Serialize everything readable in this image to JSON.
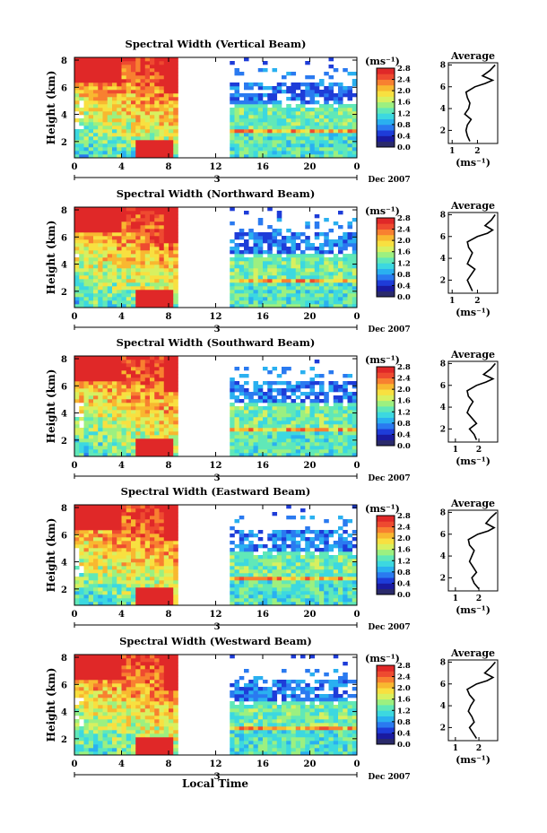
{
  "page": {
    "xlabel": "Local Time",
    "date_label": "Dec 2007"
  },
  "colorbar": {
    "unit": "(ms⁻¹)",
    "ticks": [
      "0.0",
      "0.4",
      "0.8",
      "1.2",
      "1.6",
      "2.0",
      "2.4",
      "2.8"
    ],
    "palette": [
      "#2a2a6a",
      "#1a1aa0",
      "#1e3cd8",
      "#2a7af0",
      "#2ab0f0",
      "#3cd8e0",
      "#60e8b8",
      "#9cf080",
      "#d8f060",
      "#f8e040",
      "#f8b830",
      "#f88030",
      "#ee4a30",
      "#e02828"
    ]
  },
  "chart_data": [
    {
      "type": "heatmap",
      "title": "Spectral Width (Vertical Beam)",
      "ylabel": "Height (km)",
      "x_ticks": [
        "0",
        "4",
        "8",
        "12",
        "16",
        "20",
        "0"
      ],
      "x_sub_label": "3",
      "xlim": [
        0,
        24
      ],
      "y_ticks": [
        "2",
        "4",
        "6",
        "8"
      ],
      "ylim": [
        0.8,
        8.2
      ],
      "colorbar_range": [
        0.0,
        2.8
      ],
      "data_gap_hours": [
        8.9,
        13.0
      ],
      "profile": {
        "title": "Average",
        "xlabel": "(ms⁻¹)",
        "x_ticks": [
          "1",
          "2"
        ],
        "xlim": [
          0.85,
          2.8
        ],
        "height_km": [
          1.0,
          1.5,
          2.0,
          2.5,
          3.0,
          3.5,
          4.0,
          4.5,
          5.0,
          5.5,
          6.0,
          6.3,
          6.6,
          7.0,
          7.5,
          8.0
        ],
        "width_ms": [
          1.7,
          1.6,
          1.55,
          1.6,
          1.75,
          1.5,
          1.65,
          1.7,
          1.6,
          1.55,
          1.9,
          2.3,
          2.6,
          2.2,
          2.5,
          2.7
        ]
      }
    },
    {
      "type": "heatmap",
      "title": "Spectral Width (Northward Beam)",
      "ylabel": "Height (km)",
      "x_ticks": [
        "0",
        "4",
        "8",
        "12",
        "16",
        "20",
        "0"
      ],
      "x_sub_label": "3",
      "xlim": [
        0,
        24
      ],
      "y_ticks": [
        "2",
        "4",
        "6",
        "8"
      ],
      "ylim": [
        0.8,
        8.2
      ],
      "colorbar_range": [
        0.0,
        2.8
      ],
      "data_gap_hours": [
        8.9,
        13.0
      ],
      "profile": {
        "title": "Average",
        "xlabel": "(ms⁻¹)",
        "x_ticks": [
          "1",
          "2"
        ],
        "xlim": [
          0.85,
          2.8
        ],
        "height_km": [
          1.0,
          1.5,
          2.0,
          2.5,
          3.0,
          3.5,
          4.0,
          4.5,
          5.0,
          5.5,
          6.0,
          6.3,
          6.6,
          7.0,
          7.5,
          8.0
        ],
        "width_ms": [
          1.8,
          1.7,
          1.6,
          1.75,
          1.9,
          1.6,
          1.7,
          1.8,
          1.65,
          1.6,
          2.0,
          2.4,
          2.6,
          2.3,
          2.55,
          2.7
        ]
      }
    },
    {
      "type": "heatmap",
      "title": "Spectral Width (Southward Beam)",
      "ylabel": "Height (km)",
      "x_ticks": [
        "0",
        "4",
        "8",
        "12",
        "16",
        "20",
        "0"
      ],
      "x_sub_label": "3",
      "xlim": [
        0,
        24
      ],
      "y_ticks": [
        "2",
        "4",
        "6",
        "8"
      ],
      "ylim": [
        0.8,
        8.2
      ],
      "colorbar_range": [
        0.0,
        2.8
      ],
      "data_gap_hours": [
        8.9,
        13.0
      ],
      "profile": {
        "title": "Average",
        "xlabel": "(ms⁻¹)",
        "x_ticks": [
          "1",
          "2"
        ],
        "xlim": [
          0.7,
          2.8
        ],
        "height_km": [
          1.0,
          1.5,
          2.0,
          2.5,
          3.0,
          3.5,
          4.0,
          4.5,
          5.0,
          5.5,
          6.0,
          6.3,
          6.6,
          7.0,
          7.5,
          8.0
        ],
        "width_ms": [
          1.9,
          1.8,
          1.6,
          1.9,
          1.7,
          1.5,
          1.6,
          1.75,
          1.55,
          1.5,
          1.9,
          2.3,
          2.6,
          2.2,
          2.5,
          2.7
        ]
      }
    },
    {
      "type": "heatmap",
      "title": "Spectral Width (Eastward Beam)",
      "ylabel": "Height (km)",
      "x_ticks": [
        "0",
        "4",
        "8",
        "12",
        "16",
        "20",
        "0"
      ],
      "x_sub_label": "3",
      "xlim": [
        0,
        24
      ],
      "y_ticks": [
        "2",
        "4",
        "6",
        "8"
      ],
      "ylim": [
        0.8,
        8.2
      ],
      "colorbar_range": [
        0.0,
        2.8
      ],
      "data_gap_hours": [
        8.9,
        13.0
      ],
      "profile": {
        "title": "Average",
        "xlabel": "(ms⁻¹)",
        "x_ticks": [
          "1",
          "2"
        ],
        "xlim": [
          0.7,
          2.8
        ],
        "height_km": [
          1.0,
          1.5,
          2.0,
          2.5,
          3.0,
          3.5,
          4.0,
          4.5,
          5.0,
          5.5,
          6.0,
          6.3,
          6.6,
          7.0,
          7.5,
          8.0
        ],
        "width_ms": [
          2.0,
          1.8,
          1.7,
          1.9,
          1.75,
          1.6,
          1.7,
          1.8,
          1.6,
          1.55,
          1.95,
          2.4,
          2.65,
          2.3,
          2.5,
          2.75
        ]
      }
    },
    {
      "type": "heatmap",
      "title": "Spectral Width (Westward Beam)",
      "ylabel": "Height (km)",
      "x_ticks": [
        "0",
        "4",
        "8",
        "12",
        "16",
        "20",
        "0"
      ],
      "x_sub_label": "3",
      "xlim": [
        0,
        24
      ],
      "y_ticks": [
        "2",
        "4",
        "6",
        "8"
      ],
      "ylim": [
        0.8,
        8.2
      ],
      "colorbar_range": [
        0.0,
        2.8
      ],
      "data_gap_hours": [
        8.9,
        13.0
      ],
      "profile": {
        "title": "Average",
        "xlabel": "(ms⁻¹)",
        "x_ticks": [
          "1",
          "2"
        ],
        "xlim": [
          0.7,
          2.8
        ],
        "height_km": [
          1.0,
          1.5,
          2.0,
          2.5,
          3.0,
          3.5,
          4.0,
          4.5,
          5.0,
          5.5,
          6.0,
          6.3,
          6.6,
          7.0,
          7.5,
          8.0
        ],
        "width_ms": [
          1.9,
          1.75,
          1.6,
          1.8,
          1.7,
          1.55,
          1.65,
          1.8,
          1.6,
          1.5,
          1.9,
          2.35,
          2.6,
          2.25,
          2.5,
          2.7
        ]
      }
    }
  ]
}
